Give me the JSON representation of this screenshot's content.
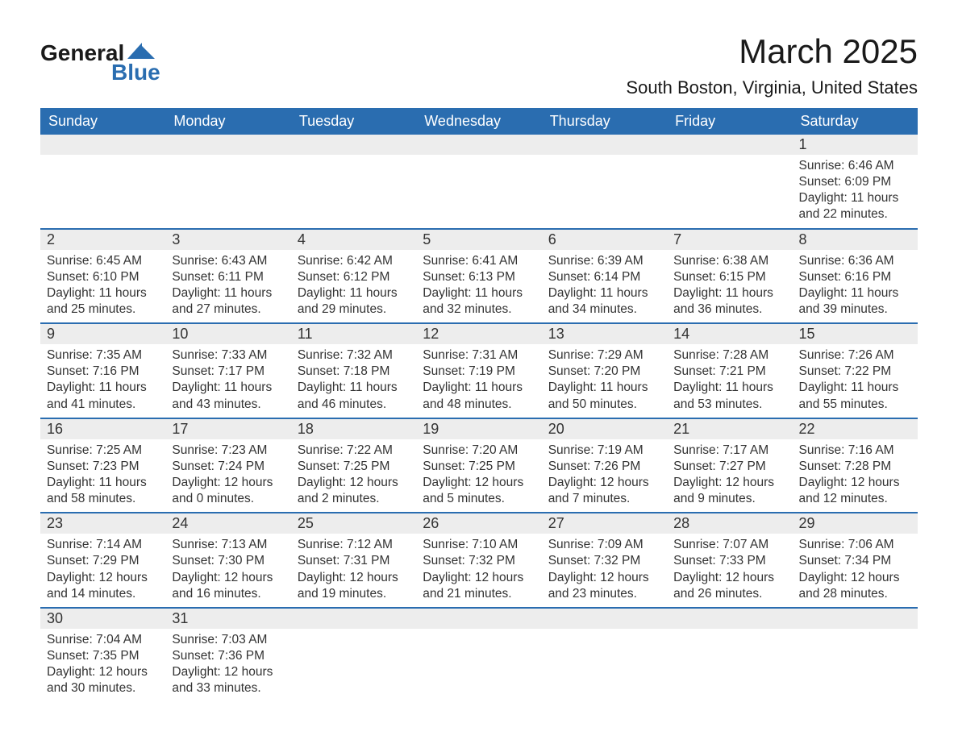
{
  "brand": {
    "word1": "General",
    "word2": "Blue",
    "accent_color": "#2a6db0"
  },
  "title": "March 2025",
  "subtitle": "South Boston, Virginia, United States",
  "header_bg": "#2a6db0",
  "header_fg": "#ffffff",
  "daynum_bg": "#ededed",
  "row_divider": "#2a6db0",
  "day_names": [
    "Sunday",
    "Monday",
    "Tuesday",
    "Wednesday",
    "Thursday",
    "Friday",
    "Saturday"
  ],
  "weeks": [
    [
      null,
      null,
      null,
      null,
      null,
      null,
      {
        "n": "1",
        "sunrise": "6:46 AM",
        "sunset": "6:09 PM",
        "dl": "11 hours and 22 minutes."
      }
    ],
    [
      {
        "n": "2",
        "sunrise": "6:45 AM",
        "sunset": "6:10 PM",
        "dl": "11 hours and 25 minutes."
      },
      {
        "n": "3",
        "sunrise": "6:43 AM",
        "sunset": "6:11 PM",
        "dl": "11 hours and 27 minutes."
      },
      {
        "n": "4",
        "sunrise": "6:42 AM",
        "sunset": "6:12 PM",
        "dl": "11 hours and 29 minutes."
      },
      {
        "n": "5",
        "sunrise": "6:41 AM",
        "sunset": "6:13 PM",
        "dl": "11 hours and 32 minutes."
      },
      {
        "n": "6",
        "sunrise": "6:39 AM",
        "sunset": "6:14 PM",
        "dl": "11 hours and 34 minutes."
      },
      {
        "n": "7",
        "sunrise": "6:38 AM",
        "sunset": "6:15 PM",
        "dl": "11 hours and 36 minutes."
      },
      {
        "n": "8",
        "sunrise": "6:36 AM",
        "sunset": "6:16 PM",
        "dl": "11 hours and 39 minutes."
      }
    ],
    [
      {
        "n": "9",
        "sunrise": "7:35 AM",
        "sunset": "7:16 PM",
        "dl": "11 hours and 41 minutes."
      },
      {
        "n": "10",
        "sunrise": "7:33 AM",
        "sunset": "7:17 PM",
        "dl": "11 hours and 43 minutes."
      },
      {
        "n": "11",
        "sunrise": "7:32 AM",
        "sunset": "7:18 PM",
        "dl": "11 hours and 46 minutes."
      },
      {
        "n": "12",
        "sunrise": "7:31 AM",
        "sunset": "7:19 PM",
        "dl": "11 hours and 48 minutes."
      },
      {
        "n": "13",
        "sunrise": "7:29 AM",
        "sunset": "7:20 PM",
        "dl": "11 hours and 50 minutes."
      },
      {
        "n": "14",
        "sunrise": "7:28 AM",
        "sunset": "7:21 PM",
        "dl": "11 hours and 53 minutes."
      },
      {
        "n": "15",
        "sunrise": "7:26 AM",
        "sunset": "7:22 PM",
        "dl": "11 hours and 55 minutes."
      }
    ],
    [
      {
        "n": "16",
        "sunrise": "7:25 AM",
        "sunset": "7:23 PM",
        "dl": "11 hours and 58 minutes."
      },
      {
        "n": "17",
        "sunrise": "7:23 AM",
        "sunset": "7:24 PM",
        "dl": "12 hours and 0 minutes."
      },
      {
        "n": "18",
        "sunrise": "7:22 AM",
        "sunset": "7:25 PM",
        "dl": "12 hours and 2 minutes."
      },
      {
        "n": "19",
        "sunrise": "7:20 AM",
        "sunset": "7:25 PM",
        "dl": "12 hours and 5 minutes."
      },
      {
        "n": "20",
        "sunrise": "7:19 AM",
        "sunset": "7:26 PM",
        "dl": "12 hours and 7 minutes."
      },
      {
        "n": "21",
        "sunrise": "7:17 AM",
        "sunset": "7:27 PM",
        "dl": "12 hours and 9 minutes."
      },
      {
        "n": "22",
        "sunrise": "7:16 AM",
        "sunset": "7:28 PM",
        "dl": "12 hours and 12 minutes."
      }
    ],
    [
      {
        "n": "23",
        "sunrise": "7:14 AM",
        "sunset": "7:29 PM",
        "dl": "12 hours and 14 minutes."
      },
      {
        "n": "24",
        "sunrise": "7:13 AM",
        "sunset": "7:30 PM",
        "dl": "12 hours and 16 minutes."
      },
      {
        "n": "25",
        "sunrise": "7:12 AM",
        "sunset": "7:31 PM",
        "dl": "12 hours and 19 minutes."
      },
      {
        "n": "26",
        "sunrise": "7:10 AM",
        "sunset": "7:32 PM",
        "dl": "12 hours and 21 minutes."
      },
      {
        "n": "27",
        "sunrise": "7:09 AM",
        "sunset": "7:32 PM",
        "dl": "12 hours and 23 minutes."
      },
      {
        "n": "28",
        "sunrise": "7:07 AM",
        "sunset": "7:33 PM",
        "dl": "12 hours and 26 minutes."
      },
      {
        "n": "29",
        "sunrise": "7:06 AM",
        "sunset": "7:34 PM",
        "dl": "12 hours and 28 minutes."
      }
    ],
    [
      {
        "n": "30",
        "sunrise": "7:04 AM",
        "sunset": "7:35 PM",
        "dl": "12 hours and 30 minutes."
      },
      {
        "n": "31",
        "sunrise": "7:03 AM",
        "sunset": "7:36 PM",
        "dl": "12 hours and 33 minutes."
      },
      null,
      null,
      null,
      null,
      null
    ]
  ],
  "labels": {
    "sunrise": "Sunrise:",
    "sunset": "Sunset:",
    "daylight": "Daylight:"
  }
}
